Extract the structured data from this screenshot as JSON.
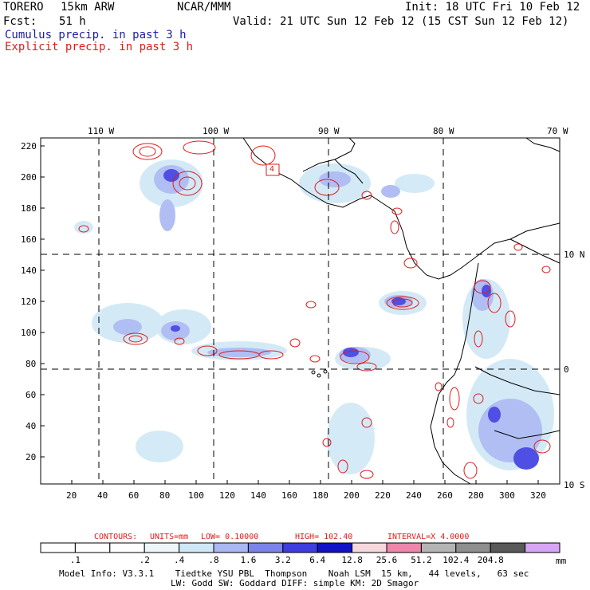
{
  "header": {
    "model": "TORERO",
    "resolution": "15km ARW",
    "center": "NCAR/MMM",
    "init": "Init: 18 UTC Fri 10 Feb 12",
    "fcst_label": "Fcst:",
    "fcst_value": "51 h",
    "valid": "Valid: 21 UTC Sun 12 Feb 12 (15 CST Sun 12 Feb 12)",
    "cumulus": "Cumulus precip. in past 3 h",
    "explicit": "Explicit precip. in past 3 h"
  },
  "map": {
    "top_lon_labels": [
      "110 W",
      "100 W",
      "90 W",
      "80 W",
      "70 W"
    ],
    "right_lat_labels": [
      "10 N",
      "0",
      "10 S"
    ],
    "left_axis_ticks": [
      "220",
      "200",
      "180",
      "160",
      "140",
      "120",
      "100",
      "80",
      "60",
      "40",
      "20"
    ],
    "bottom_axis_ticks": [
      "20",
      "40",
      "60",
      "80",
      "100",
      "120",
      "140",
      "160",
      "180",
      "200",
      "220",
      "240",
      "260",
      "280",
      "300",
      "320"
    ],
    "grid": true,
    "contour_box_label": "4"
  },
  "contour_info": {
    "contours_label": "CONTOURS:",
    "units": "UNITS=mm",
    "low": "LOW= 0.10000",
    "high": "HIGH= 102.40",
    "interval": "INTERVAL=X 4.0000"
  },
  "legend": {
    "unit": "mm",
    "labels": [
      ".1",
      ".2",
      ".4",
      ".8",
      "1.6",
      "3.2",
      "6.4",
      "12.8",
      "25.6",
      "51.2",
      "102.4",
      "204.8"
    ],
    "colors": [
      "#ffffff",
      "#ffffff",
      "#ffffff",
      "#eef6fb",
      "#cfe8f6",
      "#a9b7f2",
      "#7c83ea",
      "#3d3de0",
      "#1212c8",
      "#f6d8dc",
      "#ee86ac",
      "#b4b4b4",
      "#8e8e8e",
      "#595959",
      "#d8a4f5"
    ]
  },
  "footer": {
    "line1": "Model Info: V3.3.1    Tiedtke YSU PBL  Thompson    Noah LSM  15 km,   44 levels,   63 sec",
    "line2": "LW: Godd SW: Goddard DIFF: simple KM: 2D Smagor"
  }
}
